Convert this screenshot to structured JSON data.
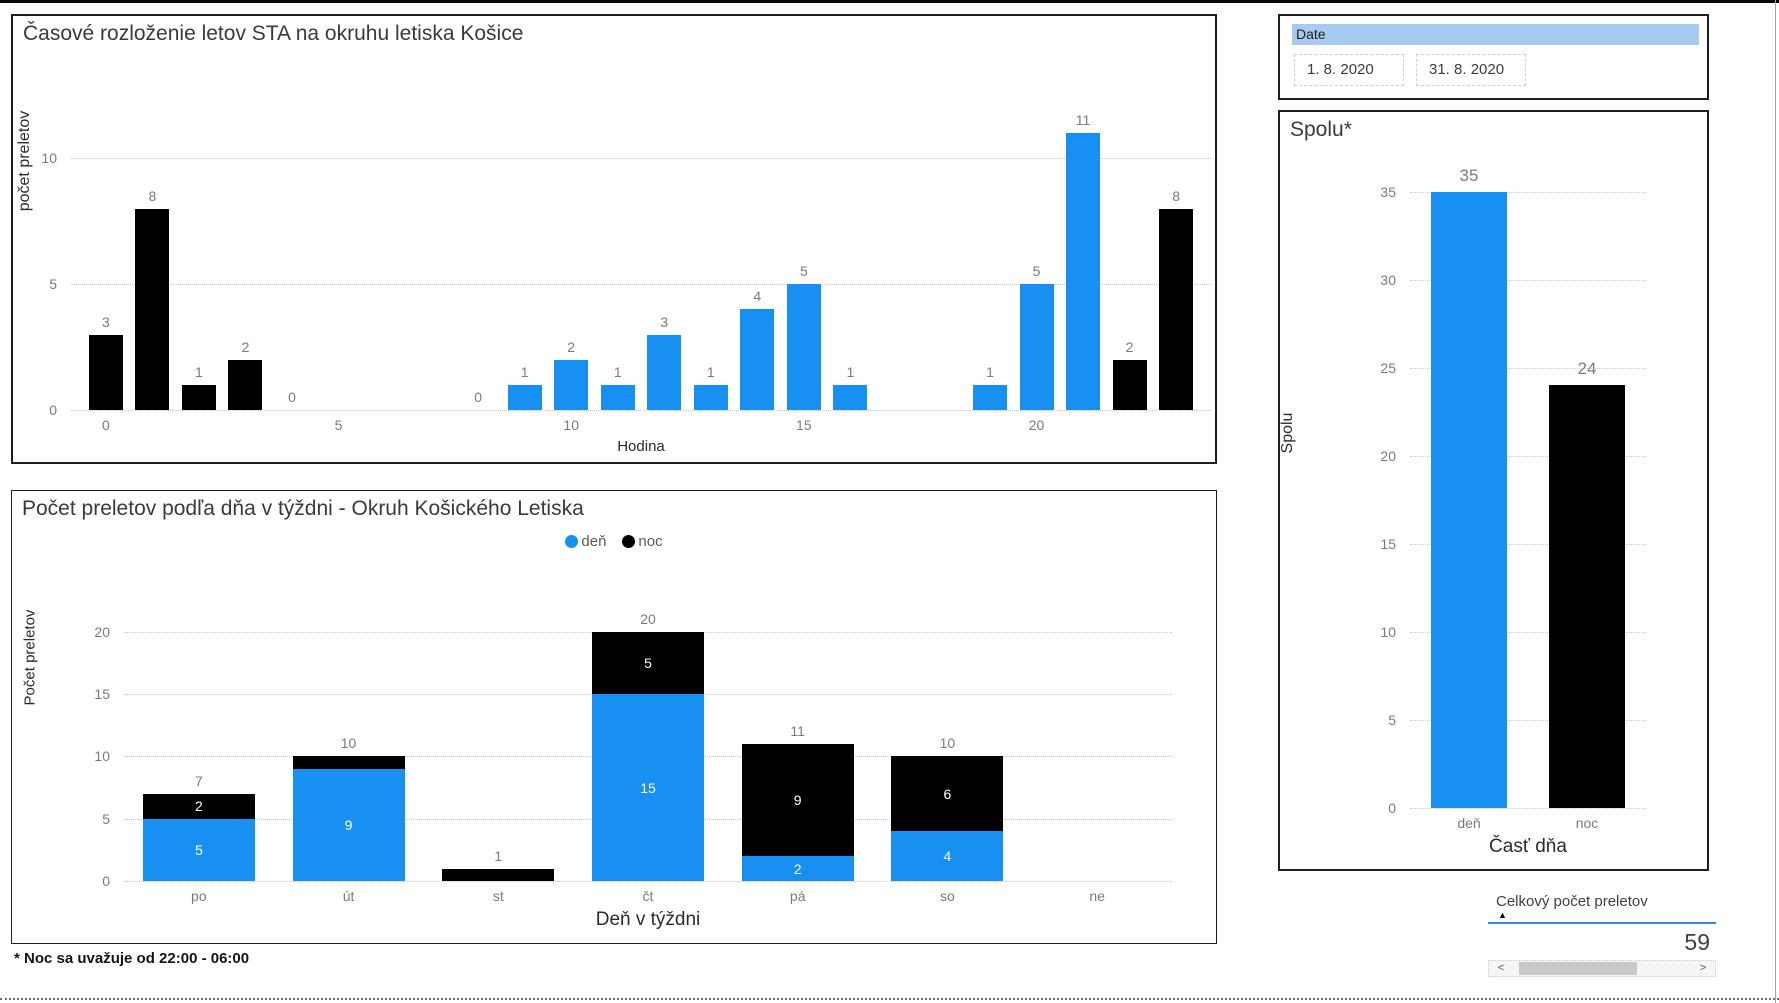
{
  "colors": {
    "day": "#1890f2",
    "night": "#000000",
    "label_gray": "#7a7a7a",
    "slicer_header_bg": "#a6cbee",
    "accent_underline": "#2a8de0"
  },
  "note": "* Noc sa uvažuje od 22:00 - 06:00",
  "slicer": {
    "header": "Date",
    "start_date": "1. 8. 2020",
    "end_date": "31. 8. 2020"
  },
  "chart_data": [
    {
      "id": "hourly",
      "type": "bar",
      "title": "Časové rozloženie letov STA na okruhu letiska Košice",
      "xlabel": "Hodina",
      "ylabel": "počet preletov",
      "x_ticks": [
        0,
        5,
        10,
        15,
        20
      ],
      "y_ticks": [
        0,
        5,
        10
      ],
      "ylim": [
        0,
        12
      ],
      "xlim": [
        -0.75,
        23.75
      ],
      "grid": "dotted",
      "points": [
        {
          "hour": 0,
          "value": 3,
          "part": "noc"
        },
        {
          "hour": 1,
          "value": 8,
          "part": "noc"
        },
        {
          "hour": 2,
          "value": 1,
          "part": "noc"
        },
        {
          "hour": 3,
          "value": 2,
          "part": "noc"
        },
        {
          "hour": 4,
          "value": 0,
          "part": null
        },
        {
          "hour": 8,
          "value": 0,
          "part": null
        },
        {
          "hour": 9,
          "value": 1,
          "part": "deň"
        },
        {
          "hour": 10,
          "value": 2,
          "part": "deň"
        },
        {
          "hour": 11,
          "value": 1,
          "part": "deň"
        },
        {
          "hour": 12,
          "value": 3,
          "part": "deň"
        },
        {
          "hour": 13,
          "value": 1,
          "part": "deň"
        },
        {
          "hour": 14,
          "value": 4,
          "part": "deň"
        },
        {
          "hour": 15,
          "value": 5,
          "part": "deň"
        },
        {
          "hour": 16,
          "value": 1,
          "part": "deň"
        },
        {
          "hour": 19,
          "value": 1,
          "part": "deň"
        },
        {
          "hour": 20,
          "value": 5,
          "part": "deň"
        },
        {
          "hour": 21,
          "value": 11,
          "part": "deň"
        },
        {
          "hour": 22,
          "value": 2,
          "part": "noc"
        },
        {
          "hour": 23,
          "value": 8,
          "part": "noc"
        }
      ]
    },
    {
      "id": "weekday",
      "type": "stacked-bar",
      "title": "Počet preletov podľa dňa v týždni - Okruh Košického Letiska",
      "xlabel": "Deň v týždni",
      "ylabel": "Počet preletov",
      "legend_position": "top-center",
      "y_ticks": [
        0,
        5,
        10,
        15,
        20
      ],
      "ylim": [
        0,
        21.5
      ],
      "grid": "dotted",
      "categories": [
        "po",
        "út",
        "st",
        "čt",
        "pá",
        "so",
        "ne"
      ],
      "series": [
        {
          "name": "deň",
          "values": [
            5,
            9,
            0,
            15,
            2,
            4,
            0
          ]
        },
        {
          "name": "noc",
          "values": [
            2,
            1,
            1,
            5,
            9,
            6,
            0
          ]
        }
      ],
      "totals": [
        7,
        10,
        1,
        20,
        11,
        10,
        0
      ]
    },
    {
      "id": "total",
      "type": "bar",
      "title": "Spolu*",
      "xlabel": "Časť dňa",
      "ylabel": "Spolu",
      "y_ticks": [
        0,
        5,
        10,
        15,
        20,
        25,
        30,
        35
      ],
      "ylim": [
        0,
        36
      ],
      "grid": "dotted",
      "categories": [
        "deň",
        "noc"
      ],
      "values": [
        35,
        24
      ]
    }
  ],
  "table": {
    "header": "Celkový počet preletov",
    "value": "59",
    "sort_icon": "▲",
    "scroll_left": "<",
    "scroll_right": ">"
  }
}
